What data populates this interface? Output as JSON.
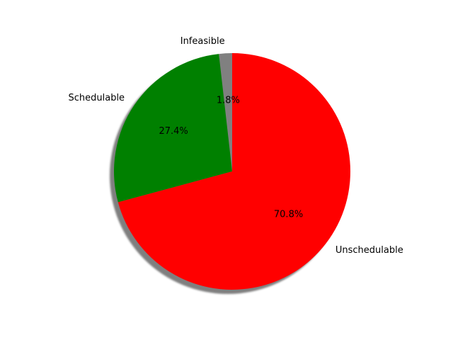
{
  "chart_data": {
    "type": "pie",
    "title": "",
    "start_angle_deg": 90,
    "direction": "counterclockwise",
    "shadow": true,
    "slices": [
      {
        "label": "Infeasible",
        "value": 1.8,
        "pct_label": "1.8%",
        "color": "#808080"
      },
      {
        "label": "Schedulable",
        "value": 27.4,
        "pct_label": "27.4%",
        "color": "#008000"
      },
      {
        "label": "Unschedulable",
        "value": 70.8,
        "pct_label": "70.8%",
        "color": "#ff0000"
      }
    ]
  }
}
